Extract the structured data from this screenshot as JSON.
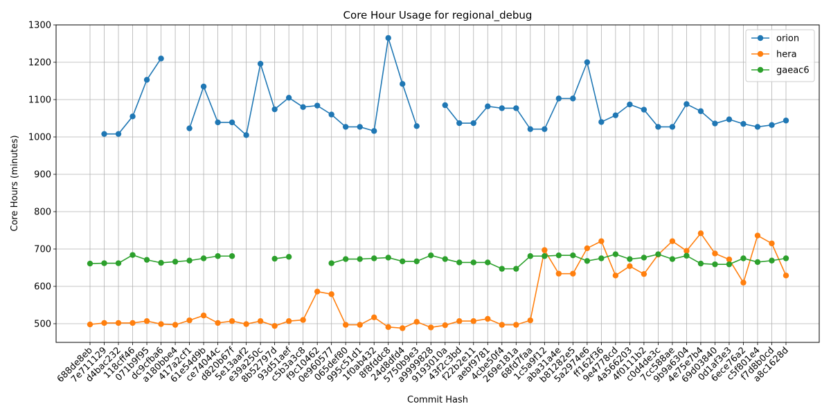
{
  "chart_data": {
    "type": "line",
    "title": "Core Hour Usage for regional_debug",
    "xlabel": "Commit Hash",
    "ylabel": "Core Hours (minutes)",
    "ylim": [
      450,
      1300
    ],
    "yticks": [
      500,
      600,
      700,
      800,
      900,
      1000,
      1100,
      1200,
      1300
    ],
    "grid": true,
    "legend_position": "top-right",
    "categories": [
      "688de8eb",
      "7e711129",
      "d4bac232",
      "118cff46",
      "071b9f95",
      "dc9cfba6",
      "a180bbe4",
      "417a2cf1",
      "61e54d9b",
      "ce74044c",
      "d820b67f",
      "5e13aaf2",
      "e39a250c",
      "8b52797d",
      "93d51aef",
      "c5b3a3c8",
      "f9c10462",
      "0e960577",
      "065def80",
      "995c51d1",
      "1f0ab432",
      "8f8fddc8",
      "24d8dfd4",
      "5750b9e3",
      "a9999828",
      "9193010a",
      "43f2c3bd",
      "f22b2e11",
      "aebf9781",
      "4cbe50f4",
      "269e181a",
      "68fd7faa",
      "1c5a9f12",
      "aba31a4e",
      "b81282e5",
      "5a2974e6",
      "ff162f36",
      "9e4778cd",
      "4a566203",
      "4f0111b2",
      "c0d4de3c",
      "7cc588ae",
      "9b9a6304",
      "4e75e7b4",
      "69d03840",
      "0d1af3e3",
      "6ece76a2",
      "c5f801e4",
      "f7d8b0cd",
      "a8c1628d"
    ],
    "series": [
      {
        "name": "orion",
        "color": "#1f77b4",
        "values": [
          null,
          1008,
          1008,
          1055,
          1153,
          1210,
          null,
          1023,
          1135,
          1039,
          1039,
          1005,
          1196,
          1074,
          1105,
          1080,
          1084,
          1060,
          1027,
          1027,
          1016,
          1265,
          1142,
          1029,
          null,
          1085,
          1037,
          1037,
          1082,
          1077,
          1077,
          1021,
          1021,
          1103,
          1103,
          1200,
          1040,
          1058,
          1087,
          1073,
          1027,
          1027,
          1088,
          1069,
          1036,
          1047,
          1035,
          1027,
          1032,
          1044
        ]
      },
      {
        "name": "hera",
        "color": "#ff7f0e",
        "values": [
          498,
          502,
          502,
          502,
          507,
          499,
          497,
          509,
          522,
          502,
          507,
          499,
          507,
          494,
          507,
          510,
          586,
          579,
          497,
          497,
          517,
          491,
          488,
          505,
          490,
          496,
          507,
          507,
          513,
          497,
          497,
          509,
          697,
          634,
          634,
          702,
          721,
          629,
          654,
          633,
          685,
          721,
          695,
          742,
          688,
          672,
          610,
          736,
          715,
          629
        ]
      },
      {
        "name": "gaeac6",
        "color": "#2ca02c",
        "values": [
          661,
          662,
          662,
          684,
          671,
          663,
          666,
          669,
          675,
          681,
          681,
          null,
          null,
          674,
          679,
          null,
          null,
          662,
          673,
          673,
          675,
          677,
          667,
          667,
          683,
          673,
          664,
          664,
          664,
          647,
          647,
          681,
          681,
          683,
          683,
          668,
          675,
          686,
          673,
          677,
          686,
          673,
          682,
          661,
          659,
          659,
          675,
          665,
          669,
          675
        ]
      }
    ]
  }
}
